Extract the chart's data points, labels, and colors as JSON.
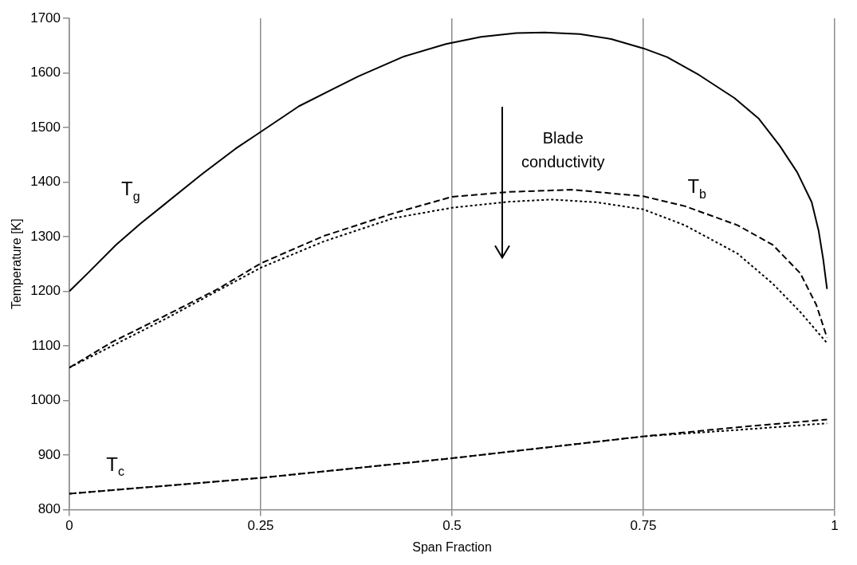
{
  "chart_data": {
    "type": "line",
    "xlabel": "Span Fraction",
    "ylabel": "Temperature [K]",
    "xlim": [
      0,
      1
    ],
    "xticks": [
      0,
      0.25,
      0.5,
      0.75,
      1
    ],
    "ylim": [
      800,
      1700
    ],
    "yticks": [
      800,
      900,
      1000,
      1100,
      1200,
      1300,
      1400,
      1500,
      1600,
      1700
    ],
    "grid": "x",
    "legend": false,
    "marker": "none",
    "series": [
      {
        "color": "#000000",
        "line_style": "solid",
        "x": [
          0,
          0.024,
          0.061,
          0.093,
          0.125,
          0.171,
          0.217,
          0.25,
          0.3,
          0.341,
          0.378,
          0.437,
          0.492,
          0.538,
          0.584,
          0.621,
          0.667,
          0.708,
          0.75,
          0.781,
          0.823,
          0.869,
          0.901,
          0.928,
          0.951,
          0.97,
          0.979,
          0.985,
          0.99
        ],
        "values": [
          1200,
          1233,
          1285,
          1324,
          1360,
          1412,
          1461,
          1492,
          1539,
          1568,
          1594,
          1630,
          1653,
          1666,
          1673,
          1674,
          1671,
          1662,
          1645,
          1629,
          1596,
          1554,
          1516,
          1467,
          1418,
          1363,
          1311,
          1259,
          1204
        ]
      },
      {
        "color": "#000000",
        "line_style": "dashed",
        "x": [
          0,
          0.056,
          0.125,
          0.194,
          0.25,
          0.332,
          0.424,
          0.5,
          0.575,
          0.657,
          0.75,
          0.804,
          0.873,
          0.919,
          0.955,
          0.976,
          0.99
        ],
        "values": [
          1060,
          1107,
          1155,
          1204,
          1251,
          1301,
          1343,
          1373,
          1382,
          1386,
          1374,
          1356,
          1321,
          1285,
          1233,
          1175,
          1115
        ]
      },
      {
        "color": "#000000",
        "line_style": "dotted",
        "x": [
          0,
          0.125,
          0.25,
          0.332,
          0.424,
          0.5,
          0.575,
          0.63,
          0.689,
          0.75,
          0.804,
          0.873,
          0.919,
          0.955,
          0.99
        ],
        "values": [
          1060,
          1149,
          1243,
          1291,
          1334,
          1353,
          1364,
          1368,
          1363,
          1350,
          1321,
          1269,
          1214,
          1162,
          1105
        ]
      },
      {
        "color": "#000000",
        "line_style": "dashed",
        "x": [
          0,
          0.25,
          0.5,
          0.75,
          0.875,
          0.99
        ],
        "values": [
          829,
          858,
          894,
          934,
          951,
          965
        ]
      },
      {
        "color": "#000000",
        "line_style": "dotted",
        "x": [
          0,
          0.25,
          0.5,
          0.75,
          0.875,
          0.99
        ],
        "values": [
          829,
          858,
          894,
          934,
          946,
          958
        ]
      }
    ],
    "annotations": [
      "T$_{g}$",
      "T$_{b}$",
      "T$_{c}$",
      "Blade conductivity"
    ]
  }
}
